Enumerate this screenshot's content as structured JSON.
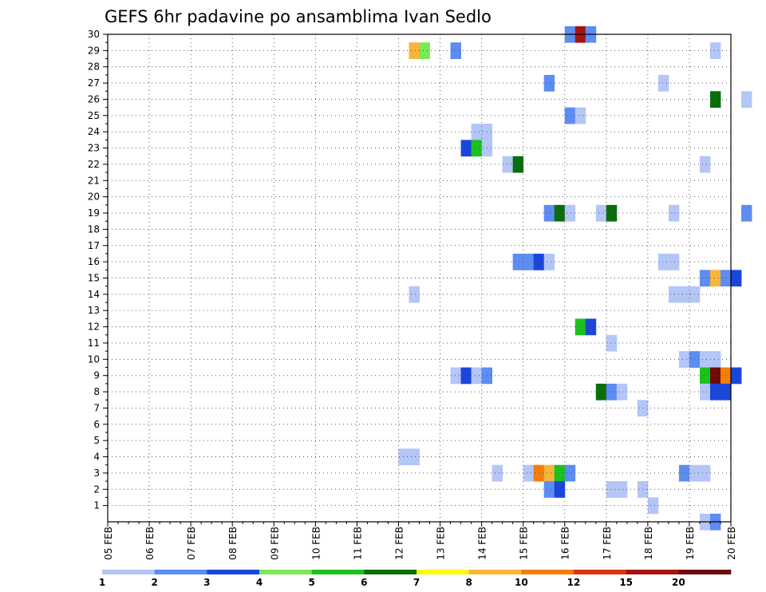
{
  "chart_data": {
    "type": "heatmap",
    "title": "GEFS 6hr padavine po ansamblima Ivan Sedlo",
    "xlabel": "",
    "ylabel": "",
    "x_ticks": [
      "05 FEB",
      "06 FEB",
      "07 FEB",
      "08 FEB",
      "09 FEB",
      "10 FEB",
      "11 FEB",
      "12 FEB",
      "13 FEB",
      "14 FEB",
      "15 FEB",
      "16 FEB",
      "17 FEB",
      "18 FEB",
      "19 FEB",
      "20 FEB"
    ],
    "y_ticks": [
      "1",
      "2",
      "3",
      "4",
      "5",
      "6",
      "7",
      "8",
      "9",
      "10",
      "11",
      "12",
      "13",
      "14",
      "15",
      "16",
      "17",
      "18",
      "19",
      "20",
      "21",
      "22",
      "23",
      "24",
      "25",
      "26",
      "27",
      "28",
      "29",
      "30"
    ],
    "y_range": [
      0,
      30
    ],
    "time_steps_per_day": 4,
    "grid": "dotted",
    "colorbar": {
      "labels": [
        "1",
        "2",
        "3",
        "4",
        "5",
        "6",
        "7",
        "8",
        "10",
        "12",
        "15",
        "20"
      ],
      "colors": [
        "#b4c5f7",
        "#5d8cf2",
        "#1b46dc",
        "#7be854",
        "#1cc21c",
        "#0a6e0a",
        "#fafa14",
        "#fab43c",
        "#f57d0a",
        "#e1320f",
        "#a5140f",
        "#6e0a0a"
      ]
    },
    "cells": [
      {
        "member": 30,
        "step": 44,
        "level": 2
      },
      {
        "member": 30,
        "step": 45,
        "level": 11
      },
      {
        "member": 30,
        "step": 46,
        "level": 2
      },
      {
        "member": 29,
        "step": 29,
        "level": 8
      },
      {
        "member": 29,
        "step": 30,
        "level": 4
      },
      {
        "member": 29,
        "step": 33,
        "level": 2
      },
      {
        "member": 29,
        "step": 58,
        "level": 1
      },
      {
        "member": 27,
        "step": 42,
        "level": 2
      },
      {
        "member": 27,
        "step": 53,
        "level": 1
      },
      {
        "member": 26,
        "step": 58,
        "level": 6
      },
      {
        "member": 26,
        "step": 61,
        "level": 1
      },
      {
        "member": 25,
        "step": 44,
        "level": 2
      },
      {
        "member": 25,
        "step": 45,
        "level": 1
      },
      {
        "member": 24,
        "step": 35,
        "level": 1
      },
      {
        "member": 24,
        "step": 36,
        "level": 1
      },
      {
        "member": 23,
        "step": 34,
        "level": 3
      },
      {
        "member": 23,
        "step": 35,
        "level": 5
      },
      {
        "member": 23,
        "step": 36,
        "level": 1
      },
      {
        "member": 22,
        "step": 38,
        "level": 1
      },
      {
        "member": 22,
        "step": 39,
        "level": 6
      },
      {
        "member": 22,
        "step": 57,
        "level": 1
      },
      {
        "member": 19,
        "step": 42,
        "level": 2
      },
      {
        "member": 19,
        "step": 43,
        "level": 6
      },
      {
        "member": 19,
        "step": 44,
        "level": 1
      },
      {
        "member": 19,
        "step": 47,
        "level": 1
      },
      {
        "member": 19,
        "step": 48,
        "level": 6
      },
      {
        "member": 19,
        "step": 54,
        "level": 1
      },
      {
        "member": 19,
        "step": 61,
        "level": 2
      },
      {
        "member": 16,
        "step": 39,
        "level": 2
      },
      {
        "member": 16,
        "step": 40,
        "level": 2
      },
      {
        "member": 16,
        "step": 41,
        "level": 3
      },
      {
        "member": 16,
        "step": 42,
        "level": 1
      },
      {
        "member": 16,
        "step": 53,
        "level": 1
      },
      {
        "member": 16,
        "step": 54,
        "level": 1
      },
      {
        "member": 15,
        "step": 57,
        "level": 2
      },
      {
        "member": 15,
        "step": 58,
        "level": 8
      },
      {
        "member": 15,
        "step": 59,
        "level": 2
      },
      {
        "member": 15,
        "step": 60,
        "level": 3
      },
      {
        "member": 14,
        "step": 29,
        "level": 1
      },
      {
        "member": 14,
        "step": 54,
        "level": 1
      },
      {
        "member": 14,
        "step": 55,
        "level": 1
      },
      {
        "member": 14,
        "step": 56,
        "level": 1
      },
      {
        "member": 12,
        "step": 45,
        "level": 5
      },
      {
        "member": 12,
        "step": 46,
        "level": 3
      },
      {
        "member": 11,
        "step": 48,
        "level": 1
      },
      {
        "member": 10,
        "step": 55,
        "level": 1
      },
      {
        "member": 10,
        "step": 56,
        "level": 2
      },
      {
        "member": 10,
        "step": 57,
        "level": 1
      },
      {
        "member": 10,
        "step": 58,
        "level": 1
      },
      {
        "member": 9,
        "step": 33,
        "level": 1
      },
      {
        "member": 9,
        "step": 34,
        "level": 3
      },
      {
        "member": 9,
        "step": 35,
        "level": 1
      },
      {
        "member": 9,
        "step": 36,
        "level": 2
      },
      {
        "member": 9,
        "step": 57,
        "level": 5
      },
      {
        "member": 9,
        "step": 58,
        "level": 12
      },
      {
        "member": 9,
        "step": 59,
        "level": 9
      },
      {
        "member": 9,
        "step": 60,
        "level": 3
      },
      {
        "member": 8,
        "step": 47,
        "level": 6
      },
      {
        "member": 8,
        "step": 48,
        "level": 2
      },
      {
        "member": 8,
        "step": 49,
        "level": 1
      },
      {
        "member": 8,
        "step": 57,
        "level": 1
      },
      {
        "member": 8,
        "step": 58,
        "level": 3
      },
      {
        "member": 8,
        "step": 59,
        "level": 3
      },
      {
        "member": 7,
        "step": 51,
        "level": 1
      },
      {
        "member": 4,
        "step": 28,
        "level": 1
      },
      {
        "member": 4,
        "step": 29,
        "level": 1
      },
      {
        "member": 3,
        "step": 37,
        "level": 1
      },
      {
        "member": 3,
        "step": 40,
        "level": 1
      },
      {
        "member": 3,
        "step": 41,
        "level": 9
      },
      {
        "member": 3,
        "step": 42,
        "level": 8
      },
      {
        "member": 3,
        "step": 43,
        "level": 5
      },
      {
        "member": 3,
        "step": 44,
        "level": 2
      },
      {
        "member": 3,
        "step": 55,
        "level": 2
      },
      {
        "member": 3,
        "step": 56,
        "level": 1
      },
      {
        "member": 3,
        "step": 57,
        "level": 1
      },
      {
        "member": 2,
        "step": 42,
        "level": 2
      },
      {
        "member": 2,
        "step": 43,
        "level": 3
      },
      {
        "member": 2,
        "step": 48,
        "level": 1
      },
      {
        "member": 2,
        "step": 49,
        "level": 1
      },
      {
        "member": 2,
        "step": 51,
        "level": 1
      },
      {
        "member": 1,
        "step": 52,
        "level": 1
      },
      {
        "member": 0,
        "step": 57,
        "level": 1
      },
      {
        "member": 0,
        "step": 58,
        "level": 2
      }
    ]
  }
}
